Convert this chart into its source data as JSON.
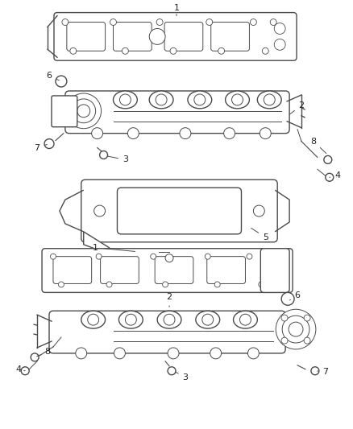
{
  "bg_color": "#ffffff",
  "line_color": "#4a4a4a",
  "text_color": "#222222",
  "fig_width": 4.38,
  "fig_height": 5.33,
  "dpi": 100
}
